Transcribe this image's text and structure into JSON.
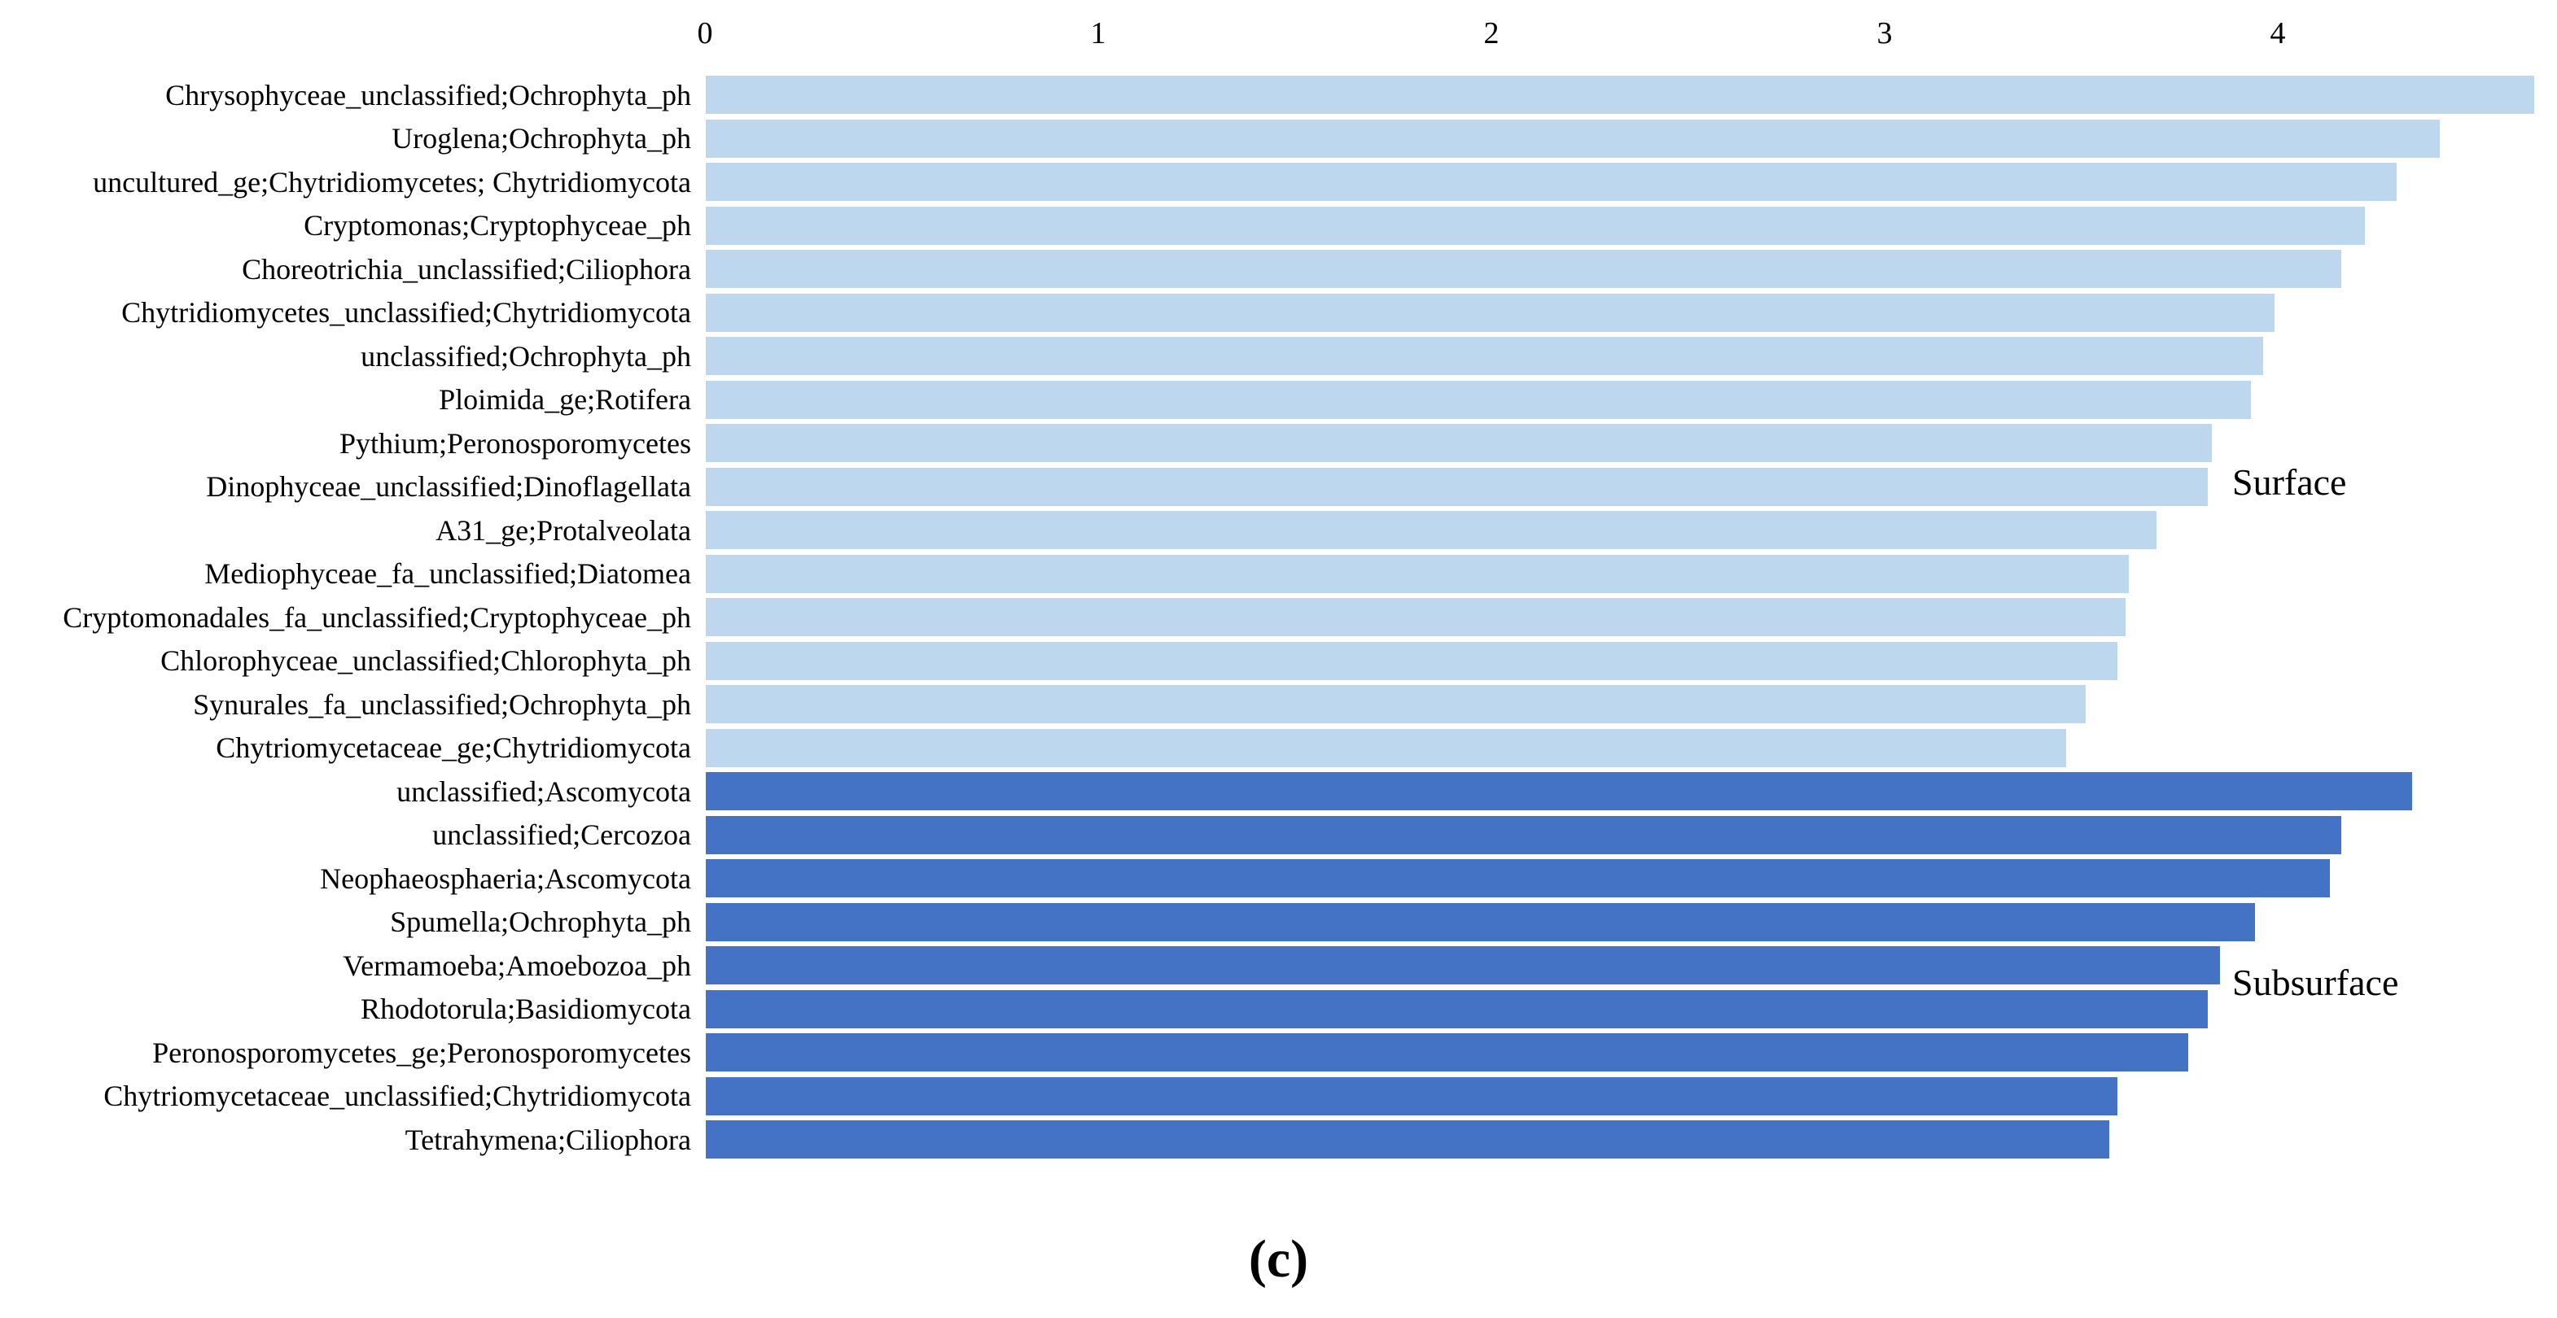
{
  "caption": "(c)",
  "annotations": {
    "surface_label": "Surface",
    "subsurface_label": "Subsurface"
  },
  "chart_data": {
    "type": "bar",
    "orientation": "horizontal",
    "title": "",
    "xlabel": "",
    "ylabel": "",
    "xlim": [
      0,
      4.7
    ],
    "x_ticks": [
      0,
      1,
      2,
      3,
      4
    ],
    "grid": false,
    "legend_position": "none",
    "colors": {
      "surface_bar": "#BDD7EE",
      "subsurface_bar": "#4472C4",
      "text": "#000000",
      "background": "#FFFFFF"
    },
    "series": [
      {
        "name": "Surface",
        "color": "#BDD7EE",
        "items": [
          {
            "label": "Chrysophyceae_unclassified;Ochrophyta_ph",
            "value": 4.65
          },
          {
            "label": "Uroglena;Ochrophyta_ph",
            "value": 4.41
          },
          {
            "label": "uncultured_ge;Chytridiomycetes; Chytridiomycota",
            "value": 4.3
          },
          {
            "label": "Cryptomonas;Cryptophyceae_ph",
            "value": 4.22
          },
          {
            "label": "Choreotrichia_unclassified;Ciliophora",
            "value": 4.16
          },
          {
            "label": "Chytridiomycetes_unclassified;Chytridiomycota",
            "value": 3.99
          },
          {
            "label": "unclassified;Ochrophyta_ph",
            "value": 3.96
          },
          {
            "label": "Ploimida_ge;Rotifera",
            "value": 3.93
          },
          {
            "label": "Pythium;Peronosporomycetes",
            "value": 3.83
          },
          {
            "label": "Dinophyceae_unclassified;Dinoflagellata",
            "value": 3.82
          },
          {
            "label": "A31_ge;Protalveolata",
            "value": 3.69
          },
          {
            "label": "Mediophyceae_fa_unclassified;Diatomea",
            "value": 3.62
          },
          {
            "label": "Cryptomonadales_fa_unclassified;Cryptophyceae_ph",
            "value": 3.61
          },
          {
            "label": "Chlorophyceae_unclassified;Chlorophyta_ph",
            "value": 3.59
          },
          {
            "label": "Synurales_fa_unclassified;Ochrophyta_ph",
            "value": 3.51
          },
          {
            "label": "Chytriomycetaceae_ge;Chytridiomycota",
            "value": 3.46
          }
        ]
      },
      {
        "name": "Subsurface",
        "color": "#4472C4",
        "items": [
          {
            "label": "unclassified;Ascomycota",
            "value": 4.34
          },
          {
            "label": "unclassified;Cercozoa",
            "value": 4.16
          },
          {
            "label": "Neophaeosphaeria;Ascomycota",
            "value": 4.13
          },
          {
            "label": "Spumella;Ochrophyta_ph",
            "value": 3.94
          },
          {
            "label": "Vermamoeba;Amoebozoa_ph",
            "value": 3.85
          },
          {
            "label": "Rhodotorula;Basidiomycota",
            "value": 3.82
          },
          {
            "label": "Peronosporomycetes_ge;Peronosporomycetes",
            "value": 3.77
          },
          {
            "label": "Chytriomycetaceae_unclassified;Chytridiomycota",
            "value": 3.59
          },
          {
            "label": "Tetrahymena;Ciliophora",
            "value": 3.57
          }
        ]
      }
    ]
  }
}
